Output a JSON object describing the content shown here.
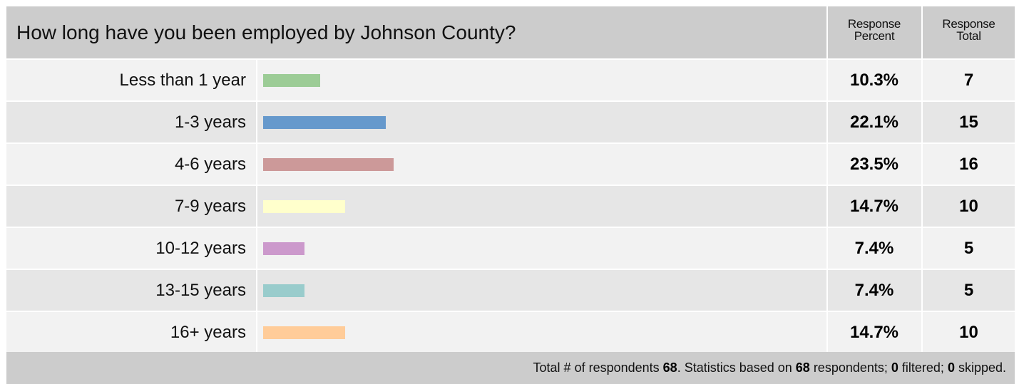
{
  "survey": {
    "question": "How long have you been employed by Johnson County?",
    "col_percent_line1": "Response",
    "col_percent_line2": "Percent",
    "col_total_line1": "Response",
    "col_total_line2": "Total"
  },
  "chart_data": {
    "type": "bar",
    "orientation": "horizontal",
    "title": "How long have you been employed by Johnson County?",
    "categories": [
      "Less than 1 year",
      "1-3 years",
      "4-6 years",
      "7-9 years",
      "10-12 years",
      "13-15 years",
      "16+ years"
    ],
    "values": [
      10.3,
      22.1,
      23.5,
      14.7,
      7.4,
      7.4,
      14.7
    ],
    "percent_labels": [
      "10.3%",
      "22.1%",
      "23.5%",
      "14.7%",
      "7.4%",
      "7.4%",
      "14.7%"
    ],
    "totals": [
      "7",
      "15",
      "16",
      "10",
      "5",
      "5",
      "10"
    ],
    "colors": [
      "#9ccc96",
      "#6699cc",
      "#cc9999",
      "#ffffcc",
      "#cc99cc",
      "#99cccc",
      "#ffcc99"
    ],
    "xlim": [
      0,
      100
    ],
    "grid": false
  },
  "footer": {
    "text1": "Total # of respondents ",
    "respondents": "68",
    "text2": ". Statistics based on ",
    "based_on": "68",
    "text3": " respondents; ",
    "filtered": "0",
    "text4": " filtered; ",
    "skipped": "0",
    "text5": " skipped."
  }
}
